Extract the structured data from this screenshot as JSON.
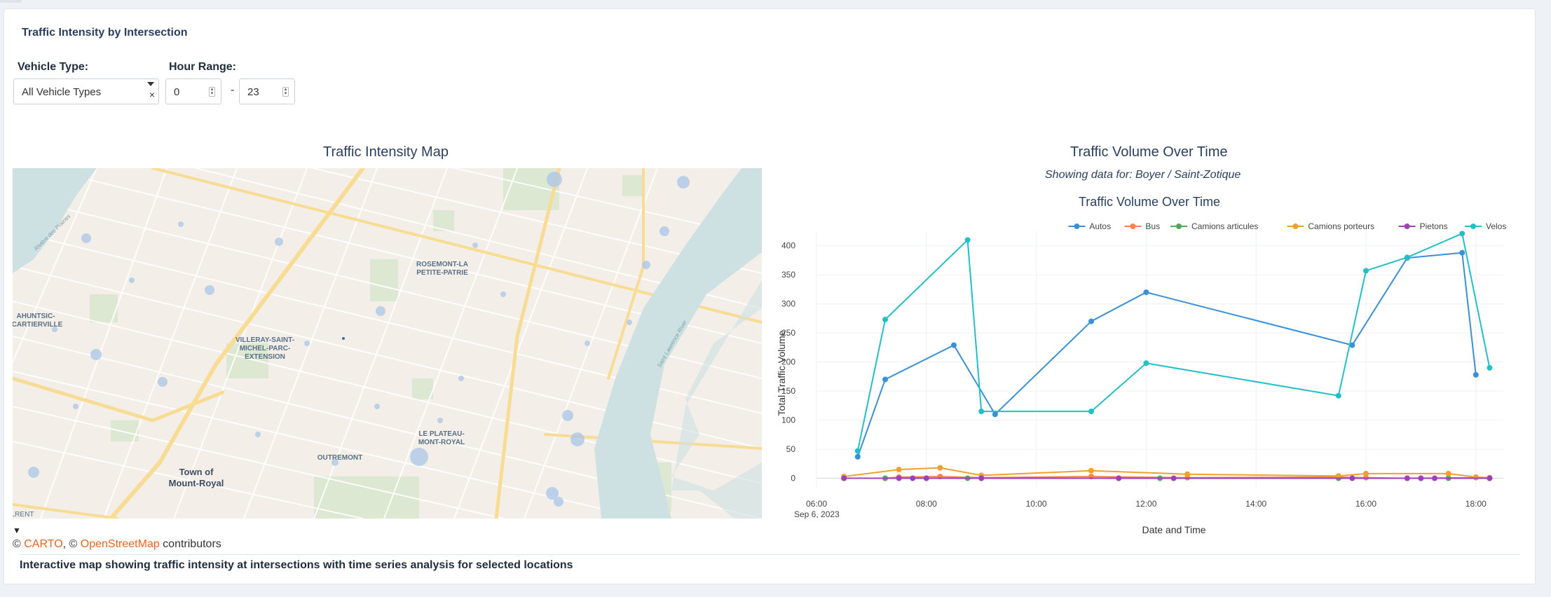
{
  "card": {
    "title": "Traffic Intensity by Intersection"
  },
  "controls": {
    "vehicle_type_label": "Vehicle Type:",
    "vehicle_type_value": "All Vehicle Types",
    "hour_range_label": "Hour Range:",
    "hour_min": "0",
    "hour_max": "23",
    "range_separator": "-"
  },
  "map": {
    "title": "Traffic Intensity Map",
    "labels": {
      "rosemont": "ROSEMONT-LA",
      "rosemont2": "PETITE-PATRIE",
      "ahuntsic": "AHUNTSIC-",
      "ahuntsic2": "CARTIERVILLE",
      "villeray": "VILLERAY-SAINT-",
      "villeray2": "MICHEL-PARC-",
      "villeray3": "EXTENSION",
      "plateau": "LE PLATEAU-",
      "plateau2": "MONT-ROYAL",
      "outremont": "OUTREMONT",
      "town": "Town of",
      "town2": "Mount-Royal",
      "lrent": "LRENT",
      "river": "Saint Lawrence River",
      "riviere": "Rivière des Prairies"
    },
    "attribution_prefix": "© ",
    "attribution_carto": "CARTO",
    "attribution_mid": ", © ",
    "attribution_osm": "OpenStreetMap",
    "attribution_suffix": " contributors",
    "toggle": "▼",
    "colors": {
      "land": "#f3efe8",
      "water": "#cde1e2",
      "park": "#dce8d2",
      "road_major": "#f8dc94",
      "road_minor": "#ffffff",
      "marker": "#a9c6e8"
    }
  },
  "chart_panel": {
    "title": "Traffic Volume Over Time",
    "subtitle": "Showing data for: Boyer / Saint-Zotique"
  },
  "footer": {
    "text": "Interactive map showing traffic intensity at intersections with time series analysis for selected locations"
  },
  "chart_data": {
    "type": "line",
    "title": "Traffic Volume Over Time",
    "xlabel": "Date and Time",
    "ylabel": "Total Traffic Volume",
    "date_label": "Sep 6, 2023",
    "x_ticks": [
      "06:00",
      "08:00",
      "10:00",
      "12:00",
      "14:00",
      "16:00",
      "18:00"
    ],
    "y_ticks": [
      0,
      50,
      100,
      150,
      200,
      250,
      300,
      350,
      400
    ],
    "xlim": [
      "06:00",
      "18:30"
    ],
    "ylim": [
      -15,
      425
    ],
    "legend_position": "top-right",
    "grid": true,
    "series": [
      {
        "name": "Autos",
        "color": "#3a8fd9",
        "points": [
          [
            "06:45",
            37
          ],
          [
            "07:15",
            170
          ],
          [
            "08:30",
            229
          ],
          [
            "09:15",
            110
          ],
          [
            "11:00",
            270
          ],
          [
            "12:00",
            320
          ],
          [
            "15:45",
            229
          ],
          [
            "16:45",
            379
          ],
          [
            "17:45",
            388
          ],
          [
            "18:00",
            178
          ]
        ]
      },
      {
        "name": "Bus",
        "color": "#f4844a",
        "points": [
          [
            "06:30",
            0
          ],
          [
            "07:15",
            0
          ],
          [
            "07:30",
            2
          ],
          [
            "08:15",
            3
          ],
          [
            "09:00",
            1
          ],
          [
            "11:00",
            3
          ],
          [
            "12:45",
            1
          ],
          [
            "15:30",
            2
          ],
          [
            "16:00",
            1
          ],
          [
            "16:45",
            0
          ],
          [
            "18:00",
            1
          ],
          [
            "18:15",
            0
          ]
        ]
      },
      {
        "name": "Camions articules",
        "color": "#4fa85b",
        "points": [
          [
            "06:30",
            0
          ],
          [
            "07:15",
            0
          ],
          [
            "08:00",
            0
          ],
          [
            "08:45",
            0
          ],
          [
            "09:00",
            0
          ],
          [
            "11:30",
            0
          ],
          [
            "12:15",
            0
          ],
          [
            "15:30",
            0
          ],
          [
            "17:00",
            0
          ],
          [
            "17:30",
            0
          ],
          [
            "18:15",
            0
          ]
        ]
      },
      {
        "name": "Camions porteurs",
        "color": "#f0a030",
        "points": [
          [
            "06:30",
            3
          ],
          [
            "07:30",
            15
          ],
          [
            "08:15",
            18
          ],
          [
            "09:00",
            5
          ],
          [
            "11:00",
            13
          ],
          [
            "12:45",
            7
          ],
          [
            "15:30",
            4
          ],
          [
            "16:00",
            8
          ],
          [
            "17:30",
            8
          ],
          [
            "18:00",
            2
          ],
          [
            "18:15",
            1
          ]
        ]
      },
      {
        "name": "Pietons",
        "color": "#a040b8",
        "points": [
          [
            "06:30",
            0
          ],
          [
            "07:30",
            0
          ],
          [
            "07:45",
            0
          ],
          [
            "08:00",
            0
          ],
          [
            "09:00",
            0
          ],
          [
            "11:30",
            0
          ],
          [
            "12:30",
            0
          ],
          [
            "15:45",
            0
          ],
          [
            "16:45",
            0
          ],
          [
            "17:00",
            0
          ],
          [
            "17:15",
            0
          ],
          [
            "18:15",
            0
          ]
        ]
      },
      {
        "name": "Velos",
        "color": "#22bfc8",
        "points": [
          [
            "06:45",
            47
          ],
          [
            "07:15",
            273
          ],
          [
            "08:45",
            410
          ],
          [
            "09:00",
            115
          ],
          [
            "11:00",
            115
          ],
          [
            "12:00",
            198
          ],
          [
            "15:30",
            142
          ],
          [
            "16:00",
            357
          ],
          [
            "16:45",
            380
          ],
          [
            "17:45",
            421
          ],
          [
            "18:15",
            190
          ]
        ]
      }
    ]
  }
}
